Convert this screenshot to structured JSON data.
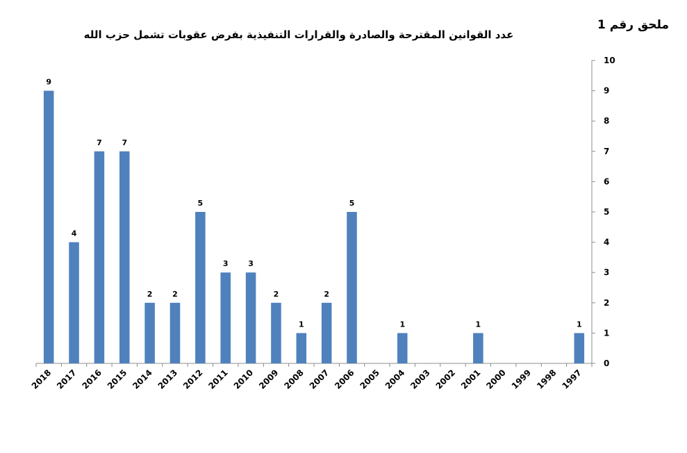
{
  "annex_label": "ملحق رقم 1",
  "chart_data": {
    "type": "bar",
    "title": "عدد القوانين المقترحة والصادرة والقرارات التنفيذية بفرض عقوبات تشمل حزب الله",
    "xlabel": "",
    "ylabel": "",
    "categories": [
      "2018",
      "2017",
      "2016",
      "2015",
      "2014",
      "2013",
      "2012",
      "2011",
      "2010",
      "2009",
      "2008",
      "2007",
      "2006",
      "2005",
      "2004",
      "2003",
      "2002",
      "2001",
      "2000",
      "1999",
      "1998",
      "1997"
    ],
    "values": [
      9,
      4,
      7,
      7,
      2,
      2,
      5,
      3,
      3,
      2,
      1,
      2,
      5,
      0,
      1,
      0,
      0,
      1,
      0,
      0,
      0,
      1
    ],
    "data_labels": [
      "9",
      "4",
      "7",
      "7",
      "2",
      "2",
      "5",
      "3",
      "3",
      "2",
      "1",
      "2",
      "5",
      "",
      "1",
      "",
      "",
      "1",
      "",
      "",
      "",
      "1"
    ],
    "ylim": [
      0,
      10
    ],
    "yticks": [
      "0",
      "1",
      "2",
      "3",
      "4",
      "5",
      "6",
      "7",
      "8",
      "9",
      "10"
    ],
    "y_axis_side": "right",
    "grid": false,
    "legend": "none",
    "bar_color": "#4f81bd"
  }
}
